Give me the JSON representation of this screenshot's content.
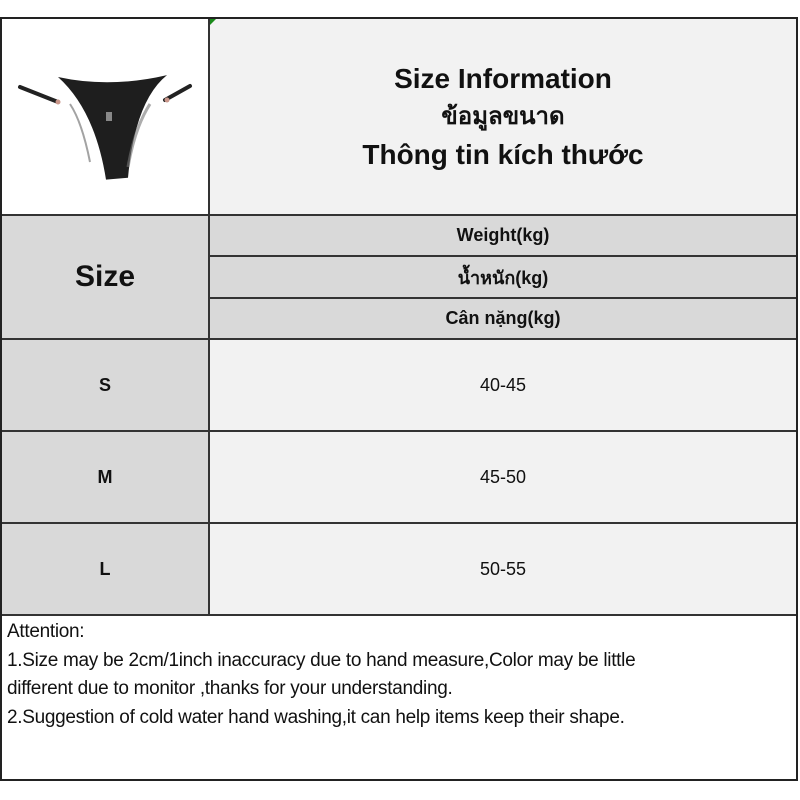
{
  "header": {
    "title_en": "Size Information",
    "title_th": "ข้อมูลขนาด",
    "title_vi": "Thông tin kích thước"
  },
  "columns": {
    "size": "Size",
    "weight_en": "Weight(kg)",
    "weight_th": "น้ำหนัก(kg)",
    "weight_vi": "Cân nặng(kg)"
  },
  "rows": [
    {
      "size": "S",
      "weight": "40-45"
    },
    {
      "size": "M",
      "weight": "45-50"
    },
    {
      "size": "L",
      "weight": "50-55"
    }
  ],
  "attention": {
    "heading": "Attention:",
    "line1a": "1.Size may be 2cm/1inch inaccuracy due to hand measure,Color may be little",
    "line1b": "different due to monitor ,thanks for your understanding.",
    "line2": "2.Suggestion of cold water hand washing,it can help items keep their shape."
  },
  "colors": {
    "header_grey": "#d9d9d9",
    "cell_light": "#f2f2f2",
    "product": "#1a1a1a"
  },
  "product_image": {
    "icon": "black-lace-thong-photo"
  }
}
